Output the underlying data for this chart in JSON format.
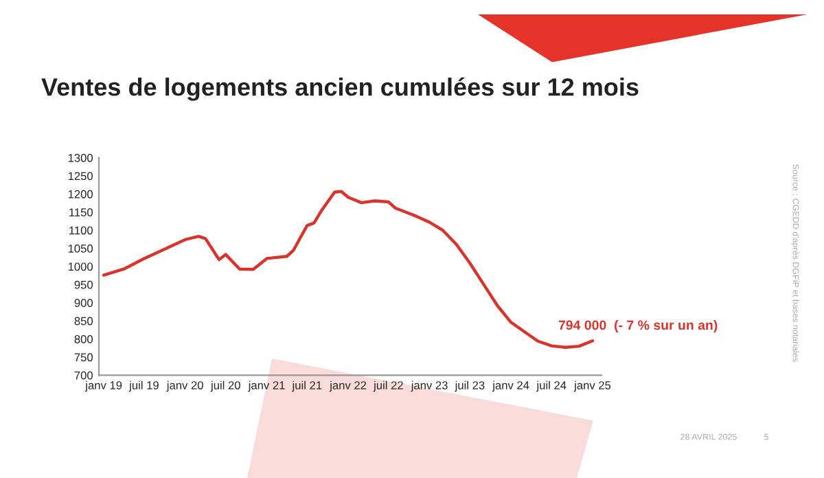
{
  "chart_data": {
    "type": "line",
    "title": "Ventes de logements ancien cumulées sur 12 mois",
    "x": [
      "2019-01",
      "2019-04",
      "2019-07",
      "2019-10",
      "2020-01",
      "2020-03",
      "2020-04",
      "2020-06",
      "2020-07",
      "2020-09",
      "2020-11",
      "2021-01",
      "2021-04",
      "2021-05",
      "2021-06",
      "2021-07",
      "2021-08",
      "2021-09",
      "2021-11",
      "2021-12",
      "2022-01",
      "2022-03",
      "2022-05",
      "2022-07",
      "2022-08",
      "2022-11",
      "2023-01",
      "2023-03",
      "2023-05",
      "2023-07",
      "2023-09",
      "2023-11",
      "2024-01",
      "2024-03",
      "2024-05",
      "2024-07",
      "2024-09",
      "2024-11",
      "2025-01"
    ],
    "series": [
      {
        "color": "#d9342b",
        "values": [
          976,
          993,
          1022,
          1048,
          1074,
          1083,
          1077,
          1019,
          1033,
          993,
          992,
          1022,
          1028,
          1045,
          1080,
          1113,
          1120,
          1152,
          1205,
          1207,
          1191,
          1176,
          1181,
          1178,
          1161,
          1139,
          1122,
          1100,
          1061,
          1009,
          950,
          892,
          846,
          820,
          794,
          781,
          777,
          780,
          795
        ]
      }
    ],
    "xlim": [
      "2018-12-10",
      "2025-02-10"
    ],
    "xticks": [
      {
        "value": "2019-01",
        "label": "janv 19"
      },
      {
        "value": "2019-07",
        "label": "juil 19"
      },
      {
        "value": "2020-01",
        "label": "janv 20"
      },
      {
        "value": "2020-07",
        "label": "juil 20"
      },
      {
        "value": "2021-01",
        "label": "janv 21"
      },
      {
        "value": "2021-07",
        "label": "juil 21"
      },
      {
        "value": "2022-01",
        "label": "janv 22"
      },
      {
        "value": "2022-07",
        "label": "juil 22"
      },
      {
        "value": "2023-01",
        "label": "janv 23"
      },
      {
        "value": "2023-07",
        "label": "juil 23"
      },
      {
        "value": "2024-01",
        "label": "janv 24"
      },
      {
        "value": "2024-07",
        "label": "juil 24"
      },
      {
        "value": "2025-01",
        "label": "janv 25"
      }
    ],
    "ylim": [
      700,
      1300
    ],
    "yticks": [
      700,
      750,
      800,
      850,
      900,
      950,
      1000,
      1050,
      1100,
      1150,
      1200,
      1250,
      1300
    ],
    "grid": false,
    "marker": "none",
    "line_style": "solid",
    "annotations": [
      {
        "text": "794 000  (- 7 % sur un an)",
        "x": "2025-01",
        "y": 794
      },
      "Source : CGEDD d'après DGFiP et bases notariales",
      "28 AVRIL 2025",
      "5"
    ]
  }
}
